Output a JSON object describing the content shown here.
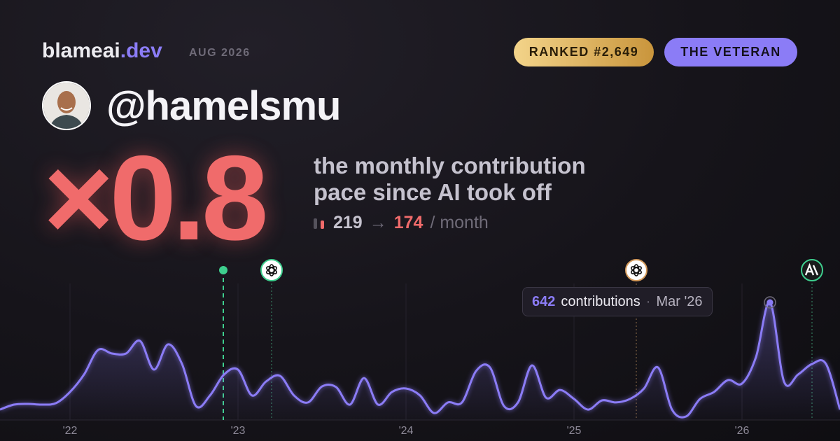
{
  "header": {
    "brand": "blameai",
    "brand_tld": ".dev",
    "date": "AUG 2026",
    "rank_badge": "RANKED #2,649",
    "archetype_badge": "THE VETERAN"
  },
  "profile": {
    "handle": "@hamelsmu"
  },
  "headline": {
    "multiplier": "×0.8",
    "description_line_1": "the monthly contribution",
    "description_line_2": "pace since AI took off",
    "before": "219",
    "arrow": "→",
    "after": "174",
    "unit": "/ month"
  },
  "tooltip": {
    "label": "contributions",
    "separator": "·",
    "date": "Mar '26"
  },
  "chart_data": {
    "type": "line",
    "color": "#8b7cf6",
    "categories": [
      null,
      null,
      null,
      null,
      null,
      "'22",
      null,
      null,
      null,
      null,
      null,
      null,
      null,
      null,
      null,
      null,
      null,
      "'23",
      null,
      null,
      null,
      null,
      null,
      null,
      null,
      null,
      null,
      null,
      null,
      "'24",
      null,
      null,
      null,
      null,
      null,
      null,
      null,
      null,
      null,
      null,
      null,
      "'25",
      null,
      null,
      null,
      null,
      null,
      null,
      null,
      null,
      null,
      null,
      null,
      "'26",
      null,
      null,
      null,
      null,
      null,
      null,
      null
    ],
    "values": [
      57,
      84,
      88,
      84,
      92,
      153,
      248,
      382,
      363,
      363,
      432,
      275,
      413,
      306,
      76,
      134,
      248,
      275,
      134,
      210,
      241,
      134,
      96,
      183,
      180,
      84,
      229,
      84,
      153,
      172,
      134,
      38,
      96,
      96,
      267,
      287,
      76,
      96,
      298,
      122,
      164,
      115,
      57,
      107,
      96,
      115,
      172,
      287,
      57,
      19,
      115,
      153,
      218,
      199,
      344,
      642,
      210,
      248,
      306,
      306,
      57
    ],
    "ylim": [
      0,
      642
    ]
  }
}
